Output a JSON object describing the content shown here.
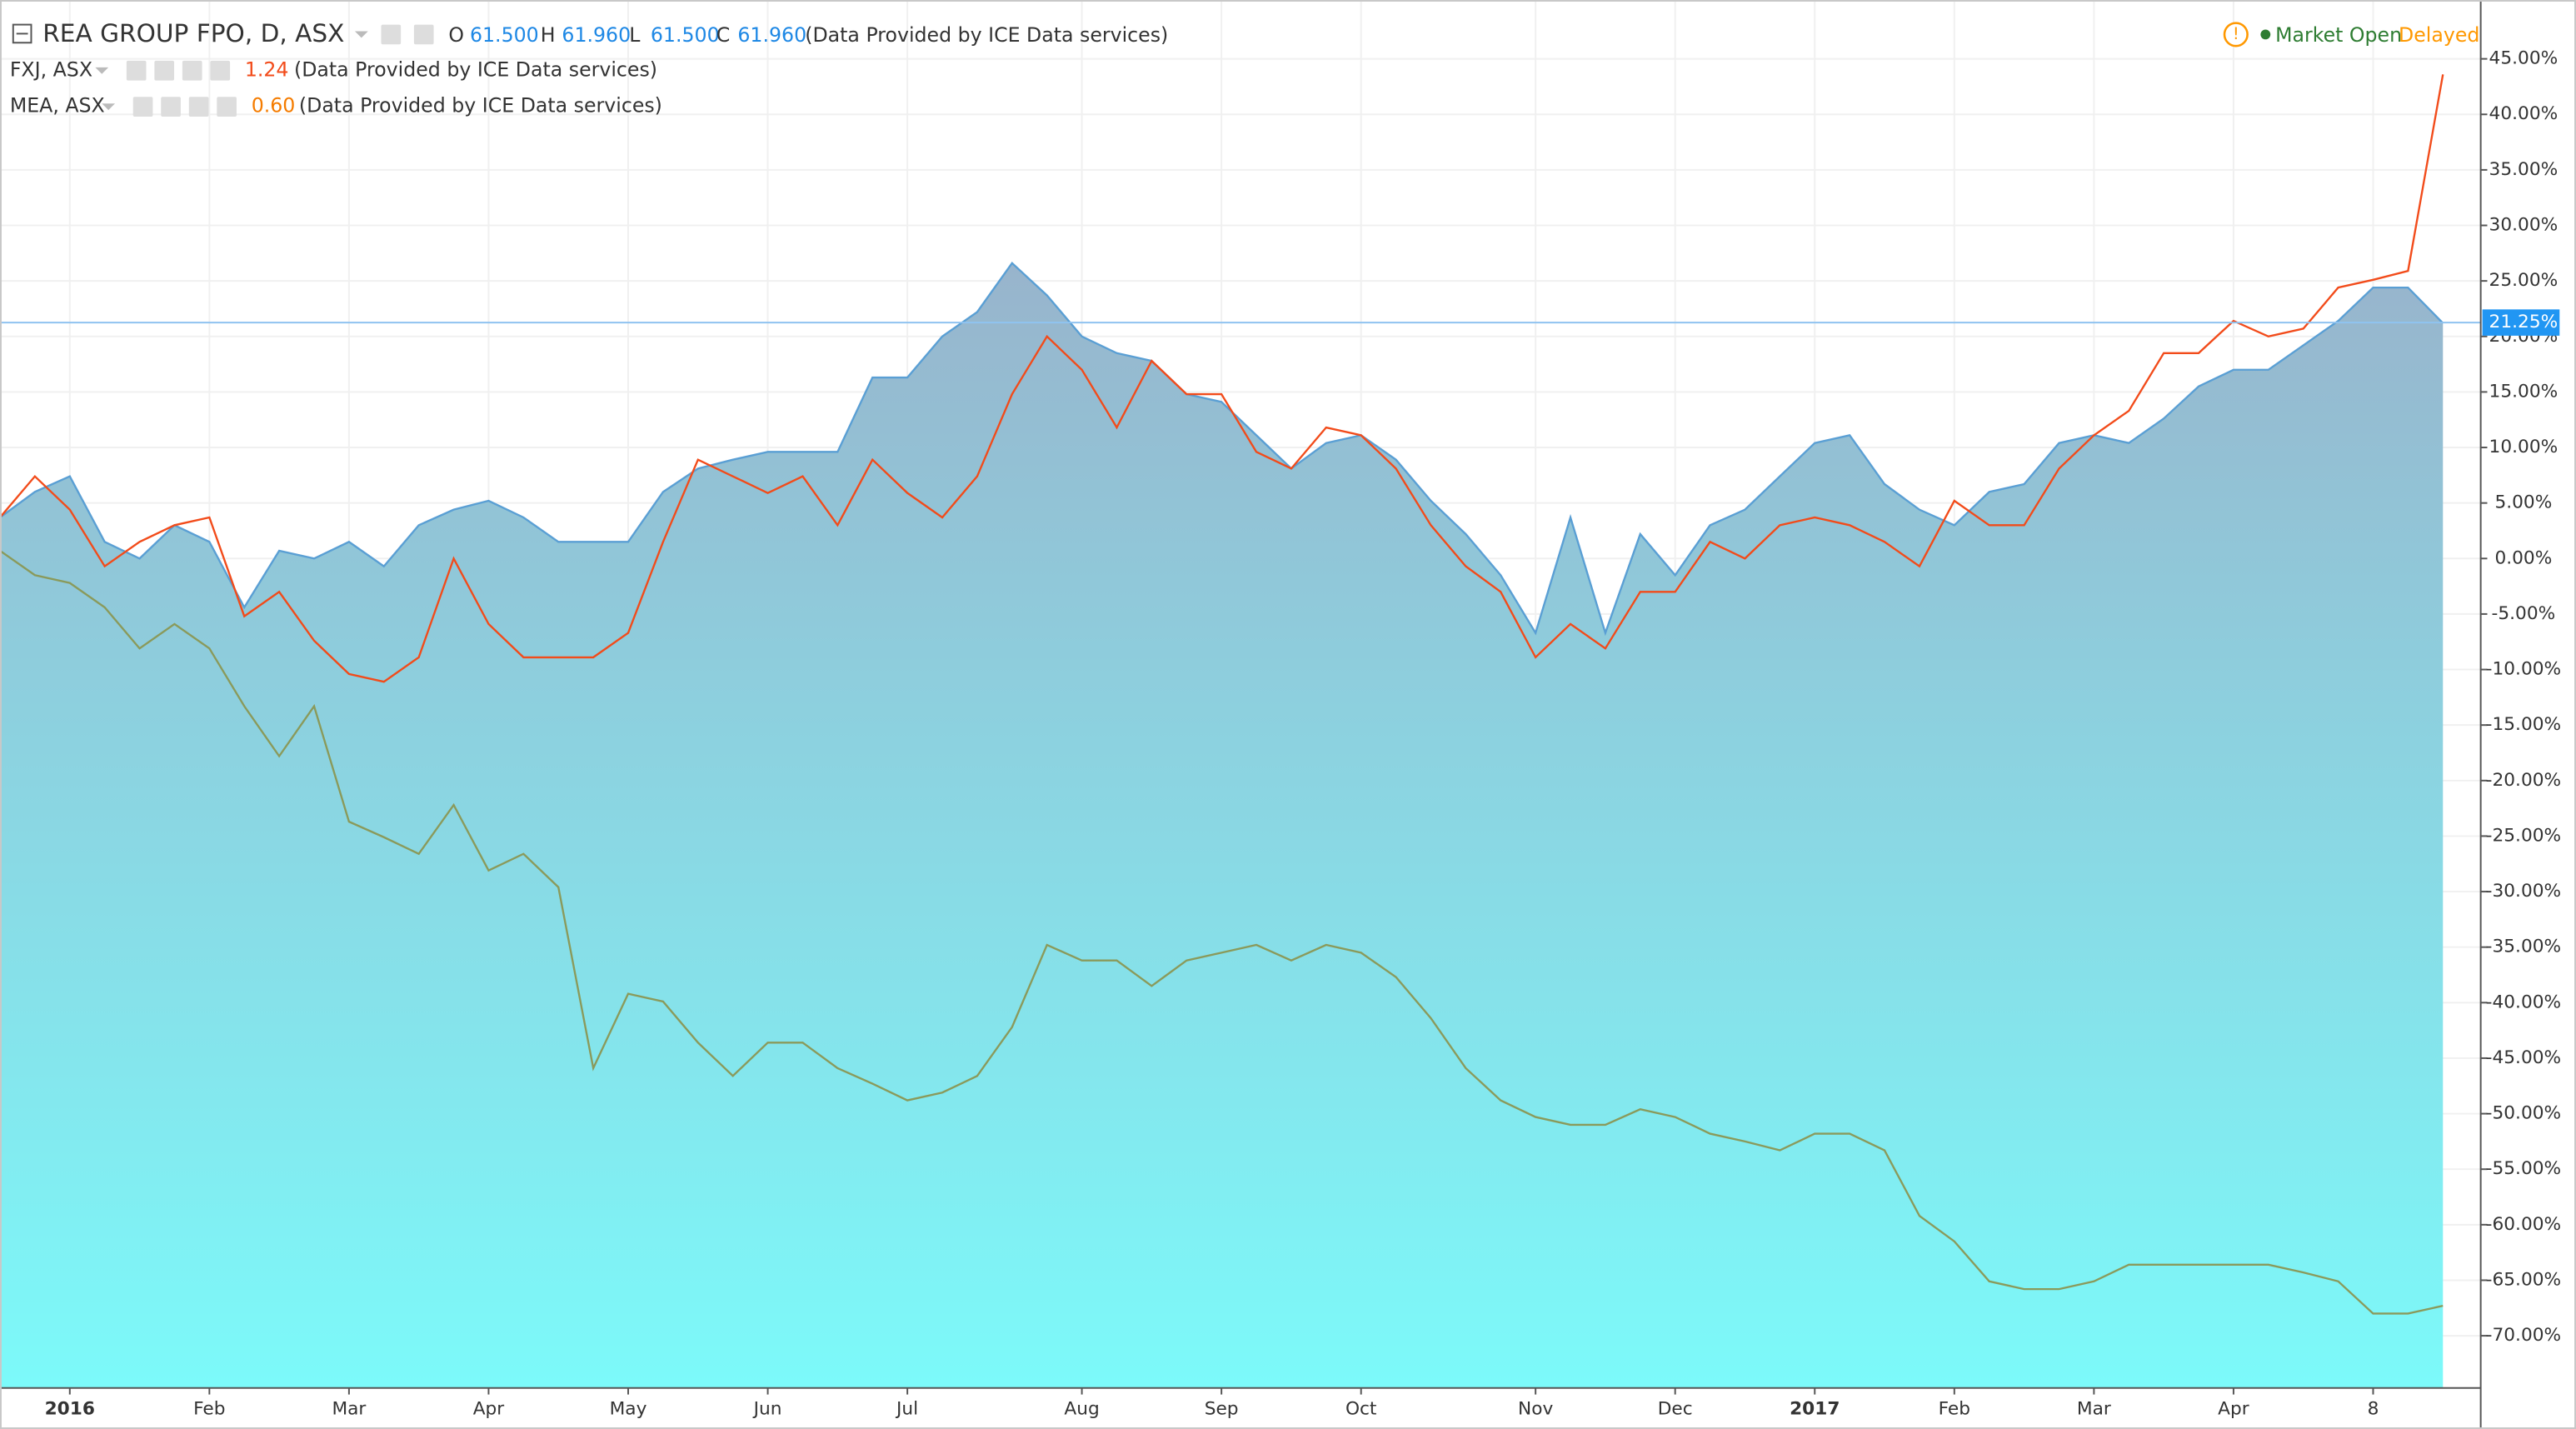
{
  "chart_data": {
    "type": "line",
    "title": "REA GROUP FPO, D, ASX",
    "ohlc": [
      {
        "name": "O",
        "value": {
          "value": 61.5,
          "label": "61.500"
        }
      },
      {
        "name": "H",
        "value": {
          "value": 61.96,
          "label": "61.960"
        }
      },
      {
        "name": "L",
        "value": {
          "value": 61.5,
          "label": "61.500"
        }
      },
      {
        "name": "C",
        "value": {
          "value": 61.96,
          "label": "61.960"
        }
      }
    ],
    "source": "(Data Provided by ICE Data services)",
    "status": {
      "icon": "!",
      "market": "Market Open",
      "delay": "Delayed"
    },
    "categories": [
      null,
      null,
      "2016",
      null,
      null,
      null,
      "Feb",
      null,
      null,
      null,
      "Mar",
      null,
      null,
      null,
      "Apr",
      null,
      null,
      null,
      "May",
      null,
      null,
      null,
      "Jun",
      null,
      null,
      null,
      "Jul",
      null,
      null,
      null,
      null,
      "Aug",
      null,
      null,
      null,
      "Sep",
      null,
      null,
      null,
      "Oct",
      null,
      null,
      null,
      null,
      "Nov",
      null,
      null,
      null,
      "Dec",
      null,
      null,
      null,
      "2017",
      null,
      null,
      null,
      "Feb",
      null,
      null,
      null,
      "Mar",
      null,
      null,
      null,
      "Apr",
      null,
      null,
      null,
      "8",
      null,
      null
    ],
    "series": [
      {
        "name": "REA GROUP FPO, D, ASX",
        "style": "area",
        "color": "#5a9fd4",
        "values": [
          3.7,
          6,
          7.4,
          1.5,
          0,
          3,
          1.5,
          -4.4,
          0.7,
          0,
          1.5,
          -0.7,
          3,
          4.4,
          5.2,
          3.7,
          1.5,
          1.5,
          1.5,
          6,
          8.1,
          8.9,
          9.6,
          9.6,
          9.6,
          16.3,
          16.3,
          20,
          22.2,
          26.6,
          23.7,
          20,
          18.5,
          17.8,
          14.8,
          14.1,
          11.1,
          8.1,
          10.4,
          11.1,
          8.9,
          5.2,
          2.2,
          -1.5,
          -6.7,
          3.7,
          -6.7,
          2.2,
          -1.5,
          3,
          4.4,
          7.4,
          10.4,
          11.1,
          6.7,
          4.4,
          3,
          6,
          6.7,
          10.4,
          11.1,
          10.4,
          12.6,
          15.5,
          17,
          17,
          19.2,
          21.4,
          24.4,
          24.4,
          21.2
        ]
      },
      {
        "name": "FXJ, ASX",
        "style": "line",
        "color": "#f24b1a",
        "legend_value": 1.24,
        "values": [
          3.7,
          7.4,
          4.4,
          -0.7,
          1.5,
          3,
          3.7,
          -5.2,
          -3,
          -7.4,
          -10.4,
          -11.1,
          -8.9,
          0,
          -5.9,
          -8.9,
          -8.9,
          -8.9,
          -6.7,
          1.5,
          8.9,
          7.4,
          5.9,
          7.4,
          3,
          8.9,
          5.9,
          3.7,
          7.4,
          14.8,
          20,
          17,
          11.8,
          17.8,
          14.8,
          14.8,
          9.6,
          8.1,
          11.8,
          11.1,
          8.1,
          3,
          -0.7,
          -3,
          -8.9,
          -5.9,
          -8.1,
          -3,
          -3,
          1.5,
          0,
          3,
          3.7,
          3,
          1.5,
          -0.7,
          5.2,
          3,
          3,
          8.1,
          11.1,
          13.3,
          18.5,
          18.5,
          21.4,
          20,
          20.7,
          24.4,
          25.1,
          25.9,
          43.6
        ]
      },
      {
        "name": "MEA, ASX",
        "style": "line",
        "color": "#8a9a5b",
        "legend_value": {
          "value": 0.6,
          "label": "0.60"
        },
        "values": [
          0.7,
          -1.5,
          -2.2,
          -4.4,
          -8.1,
          -5.9,
          -8.1,
          -13.3,
          -17.8,
          -13.3,
          -23.7,
          -25.1,
          -26.6,
          -22.2,
          -28.1,
          -26.6,
          -29.6,
          -45.9,
          -39.2,
          -39.9,
          -43.6,
          -46.6,
          -43.6,
          -43.6,
          -45.9,
          -47.3,
          -48.8,
          -48.1,
          -46.6,
          -42.2,
          -34.8,
          -36.2,
          -36.2,
          -38.5,
          -36.2,
          -35.5,
          -34.8,
          -36.2,
          -34.8,
          -35.5,
          -37.7,
          -41.4,
          -45.9,
          -48.8,
          -50.3,
          -51,
          -51,
          -49.6,
          -50.3,
          -51.8,
          -52.5,
          -53.3,
          -51.8,
          -51.8,
          -53.3,
          -59.2,
          -61.5,
          -65.1,
          -65.8,
          -65.8,
          -65.1,
          -63.6,
          -63.6,
          -63.6,
          -63.6,
          -63.6,
          -64.3,
          -65.1,
          -68,
          -68,
          -67.3
        ]
      }
    ],
    "ylim": [
      -74.7,
      50.3
    ],
    "yticks": [
      {
        "value": 45,
        "label": "45.00%"
      },
      {
        "value": 40,
        "label": "40.00%"
      },
      {
        "value": 35,
        "label": "35.00%"
      },
      {
        "value": 30,
        "label": "30.00%"
      },
      {
        "value": 25,
        "label": "25.00%"
      },
      {
        "value": 20,
        "label": "20.00%"
      },
      {
        "value": 15,
        "label": "15.00%"
      },
      {
        "value": 10,
        "label": "10.00%"
      },
      {
        "value": 5,
        "label": "5.00%"
      },
      {
        "value": 0,
        "label": "0.00%"
      },
      {
        "value": -5,
        "label": "-5.00%"
      },
      {
        "value": -10,
        "label": "-10.00%"
      },
      {
        "value": -15,
        "label": "-15.00%"
      },
      {
        "value": -20,
        "label": "-20.00%"
      },
      {
        "value": -25,
        "label": "-25.00%"
      },
      {
        "value": -30,
        "label": "-30.00%"
      },
      {
        "value": -35,
        "label": "-35.00%"
      },
      {
        "value": -40,
        "label": "-40.00%"
      },
      {
        "value": -45,
        "label": "-45.00%"
      },
      {
        "value": -50,
        "label": "-50.00%"
      },
      {
        "value": -55,
        "label": "-55.00%"
      },
      {
        "value": -60,
        "label": "-60.00%"
      },
      {
        "value": -65,
        "label": "-65.00%"
      },
      {
        "value": -70,
        "label": "-70.00%"
      }
    ],
    "last_value": {
      "value": 21.25,
      "label": "21.25%"
    },
    "grid": true
  }
}
